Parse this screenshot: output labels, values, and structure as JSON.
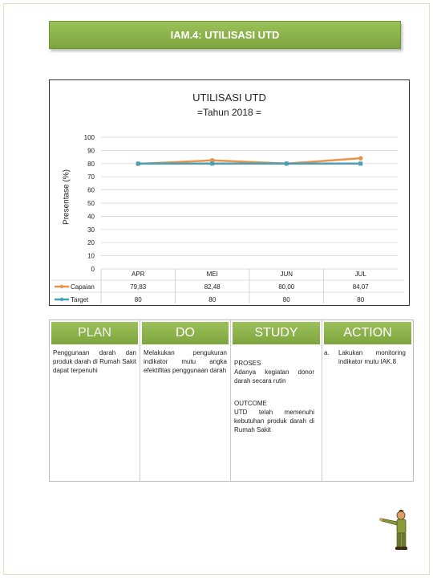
{
  "header": {
    "title": "IAM.4: UTILISASI UTD"
  },
  "chart_data": {
    "type": "line",
    "title": "UTILISASI UTD",
    "subtitle": "=Tahun 2018 =",
    "ylabel": "Presentase (%)",
    "xlabel": "",
    "ylim": [
      0,
      100
    ],
    "yticks": [
      0,
      10,
      20,
      30,
      40,
      50,
      60,
      70,
      80,
      90,
      100
    ],
    "categories": [
      "APR",
      "MEI",
      "JUN",
      "JUL"
    ],
    "series": [
      {
        "name": "Capaian",
        "values": [
          79.83,
          82.48,
          80.0,
          84.07
        ],
        "labels": [
          "79,83",
          "82,48",
          "80,00",
          "84,07"
        ],
        "color": "#e8944a"
      },
      {
        "name": "Target",
        "values": [
          80,
          80,
          80,
          80
        ],
        "labels": [
          "80",
          "80",
          "80",
          "80"
        ],
        "color": "#4a9fb5"
      }
    ],
    "grid": true,
    "legend": "data-table-left"
  },
  "pdsa": {
    "plan": {
      "heading": "PLAN",
      "text": "Penggunaan darah dan produk darah di Rumah Sakit dapat terpenuhi"
    },
    "do": {
      "heading": "DO",
      "text": "Melakukan pengukuran indikator mutu angka efektifitas penggunaan darah"
    },
    "study": {
      "heading": "STUDY",
      "proses_label": "PROSES",
      "proses_text": "Adanya kegiatan donor darah secara rutin",
      "outcome_label": "OUTCOME",
      "outcome_text": "UTD telah memenuhi kebutuhan produk darah di Rumah Sakit"
    },
    "action": {
      "heading": "ACTION",
      "marker": "a.",
      "text": "Lakukan monitoring indikator mutu IAK.8"
    }
  },
  "colors": {
    "accent": "#8db24d",
    "capaian": "#e8944a",
    "target": "#4a9fb5"
  }
}
